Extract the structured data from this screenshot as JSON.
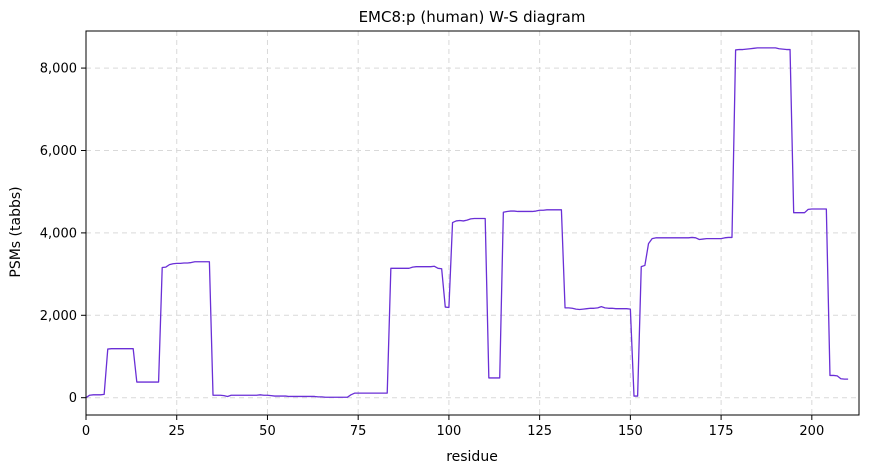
{
  "chart_data": {
    "type": "line",
    "title": "EMC8:p (human) W-S diagram",
    "xlabel": "residue",
    "ylabel": "PSMs (tabbs)",
    "xlim": [
      0,
      213
    ],
    "ylim": [
      -420,
      8900
    ],
    "grid": true,
    "x_ticks": [
      {
        "value": 0,
        "label": "0"
      },
      {
        "value": 25,
        "label": "25"
      },
      {
        "value": 50,
        "label": "50"
      },
      {
        "value": 75,
        "label": "75"
      },
      {
        "value": 100,
        "label": "100"
      },
      {
        "value": 125,
        "label": "125"
      },
      {
        "value": 150,
        "label": "150"
      },
      {
        "value": 175,
        "label": "175"
      },
      {
        "value": 200,
        "label": "200"
      }
    ],
    "y_ticks": [
      {
        "value": 0,
        "label": "0"
      },
      {
        "value": 2000,
        "label": "2,000"
      },
      {
        "value": 4000,
        "label": "4,000"
      },
      {
        "value": 6000,
        "label": "6,000"
      },
      {
        "value": 8000,
        "label": "8,000"
      }
    ],
    "series": [
      {
        "color": "#6a2fd6",
        "points": [
          [
            0,
            0
          ],
          [
            1,
            60
          ],
          [
            2,
            70
          ],
          [
            3,
            70
          ],
          [
            4,
            70
          ],
          [
            5,
            80
          ],
          [
            6,
            1180
          ],
          [
            7,
            1190
          ],
          [
            8,
            1190
          ],
          [
            9,
            1190
          ],
          [
            10,
            1190
          ],
          [
            11,
            1190
          ],
          [
            12,
            1190
          ],
          [
            13,
            1190
          ],
          [
            14,
            380
          ],
          [
            15,
            380
          ],
          [
            16,
            380
          ],
          [
            17,
            380
          ],
          [
            18,
            380
          ],
          [
            19,
            380
          ],
          [
            20,
            380
          ],
          [
            21,
            3160
          ],
          [
            22,
            3170
          ],
          [
            23,
            3230
          ],
          [
            24,
            3250
          ],
          [
            25,
            3260
          ],
          [
            26,
            3260
          ],
          [
            27,
            3270
          ],
          [
            28,
            3270
          ],
          [
            29,
            3280
          ],
          [
            30,
            3300
          ],
          [
            31,
            3300
          ],
          [
            32,
            3300
          ],
          [
            33,
            3300
          ],
          [
            34,
            3300
          ],
          [
            35,
            60
          ],
          [
            36,
            60
          ],
          [
            37,
            60
          ],
          [
            38,
            50
          ],
          [
            39,
            30
          ],
          [
            40,
            60
          ],
          [
            41,
            60
          ],
          [
            42,
            60
          ],
          [
            43,
            60
          ],
          [
            44,
            60
          ],
          [
            45,
            60
          ],
          [
            46,
            60
          ],
          [
            47,
            60
          ],
          [
            48,
            70
          ],
          [
            49,
            60
          ],
          [
            50,
            60
          ],
          [
            51,
            50
          ],
          [
            52,
            40
          ],
          [
            53,
            40
          ],
          [
            54,
            40
          ],
          [
            55,
            40
          ],
          [
            56,
            30
          ],
          [
            57,
            30
          ],
          [
            58,
            30
          ],
          [
            59,
            30
          ],
          [
            60,
            30
          ],
          [
            61,
            30
          ],
          [
            62,
            30
          ],
          [
            63,
            30
          ],
          [
            64,
            20
          ],
          [
            65,
            20
          ],
          [
            66,
            10
          ],
          [
            67,
            10
          ],
          [
            68,
            10
          ],
          [
            69,
            10
          ],
          [
            70,
            10
          ],
          [
            71,
            10
          ],
          [
            72,
            10
          ],
          [
            73,
            70
          ],
          [
            74,
            110
          ],
          [
            75,
            110
          ],
          [
            76,
            110
          ],
          [
            77,
            110
          ],
          [
            78,
            110
          ],
          [
            79,
            110
          ],
          [
            80,
            110
          ],
          [
            81,
            110
          ],
          [
            82,
            110
          ],
          [
            83,
            110
          ],
          [
            84,
            3140
          ],
          [
            85,
            3140
          ],
          [
            86,
            3140
          ],
          [
            87,
            3140
          ],
          [
            88,
            3140
          ],
          [
            89,
            3140
          ],
          [
            90,
            3170
          ],
          [
            91,
            3180
          ],
          [
            92,
            3180
          ],
          [
            93,
            3180
          ],
          [
            94,
            3180
          ],
          [
            95,
            3180
          ],
          [
            96,
            3190
          ],
          [
            97,
            3140
          ],
          [
            98,
            3130
          ],
          [
            99,
            2200
          ],
          [
            100,
            2190
          ],
          [
            101,
            4250
          ],
          [
            102,
            4290
          ],
          [
            103,
            4300
          ],
          [
            104,
            4290
          ],
          [
            105,
            4310
          ],
          [
            106,
            4340
          ],
          [
            107,
            4350
          ],
          [
            108,
            4350
          ],
          [
            109,
            4350
          ],
          [
            110,
            4350
          ],
          [
            111,
            480
          ],
          [
            112,
            480
          ],
          [
            113,
            480
          ],
          [
            114,
            480
          ],
          [
            115,
            4500
          ],
          [
            116,
            4520
          ],
          [
            117,
            4530
          ],
          [
            118,
            4530
          ],
          [
            119,
            4520
          ],
          [
            120,
            4520
          ],
          [
            121,
            4520
          ],
          [
            122,
            4520
          ],
          [
            123,
            4520
          ],
          [
            124,
            4530
          ],
          [
            125,
            4550
          ],
          [
            126,
            4550
          ],
          [
            127,
            4560
          ],
          [
            128,
            4560
          ],
          [
            129,
            4560
          ],
          [
            130,
            4560
          ],
          [
            131,
            4560
          ],
          [
            132,
            2180
          ],
          [
            133,
            2180
          ],
          [
            134,
            2170
          ],
          [
            135,
            2150
          ],
          [
            136,
            2140
          ],
          [
            137,
            2150
          ],
          [
            138,
            2160
          ],
          [
            139,
            2170
          ],
          [
            140,
            2170
          ],
          [
            141,
            2180
          ],
          [
            142,
            2210
          ],
          [
            143,
            2180
          ],
          [
            144,
            2170
          ],
          [
            145,
            2170
          ],
          [
            146,
            2160
          ],
          [
            147,
            2160
          ],
          [
            148,
            2160
          ],
          [
            149,
            2160
          ],
          [
            150,
            2150
          ],
          [
            151,
            40
          ],
          [
            152,
            40
          ],
          [
            153,
            3180
          ],
          [
            154,
            3210
          ],
          [
            155,
            3740
          ],
          [
            156,
            3860
          ],
          [
            157,
            3880
          ],
          [
            158,
            3880
          ],
          [
            159,
            3880
          ],
          [
            160,
            3880
          ],
          [
            161,
            3880
          ],
          [
            162,
            3880
          ],
          [
            163,
            3880
          ],
          [
            164,
            3880
          ],
          [
            165,
            3880
          ],
          [
            166,
            3880
          ],
          [
            167,
            3890
          ],
          [
            168,
            3880
          ],
          [
            169,
            3840
          ],
          [
            170,
            3850
          ],
          [
            171,
            3860
          ],
          [
            172,
            3860
          ],
          [
            173,
            3860
          ],
          [
            174,
            3860
          ],
          [
            175,
            3860
          ],
          [
            176,
            3880
          ],
          [
            177,
            3890
          ],
          [
            178,
            3890
          ],
          [
            179,
            8440
          ],
          [
            180,
            8450
          ],
          [
            181,
            8450
          ],
          [
            182,
            8460
          ],
          [
            183,
            8470
          ],
          [
            184,
            8480
          ],
          [
            185,
            8490
          ],
          [
            186,
            8490
          ],
          [
            187,
            8490
          ],
          [
            188,
            8490
          ],
          [
            189,
            8490
          ],
          [
            190,
            8490
          ],
          [
            191,
            8470
          ],
          [
            192,
            8460
          ],
          [
            193,
            8450
          ],
          [
            194,
            8450
          ],
          [
            195,
            4490
          ],
          [
            196,
            4490
          ],
          [
            197,
            4490
          ],
          [
            198,
            4490
          ],
          [
            199,
            4570
          ],
          [
            200,
            4580
          ],
          [
            201,
            4580
          ],
          [
            202,
            4580
          ],
          [
            203,
            4580
          ],
          [
            204,
            4580
          ],
          [
            205,
            540
          ],
          [
            206,
            540
          ],
          [
            207,
            530
          ],
          [
            208,
            460
          ],
          [
            209,
            450
          ],
          [
            210,
            450
          ]
        ]
      }
    ]
  }
}
